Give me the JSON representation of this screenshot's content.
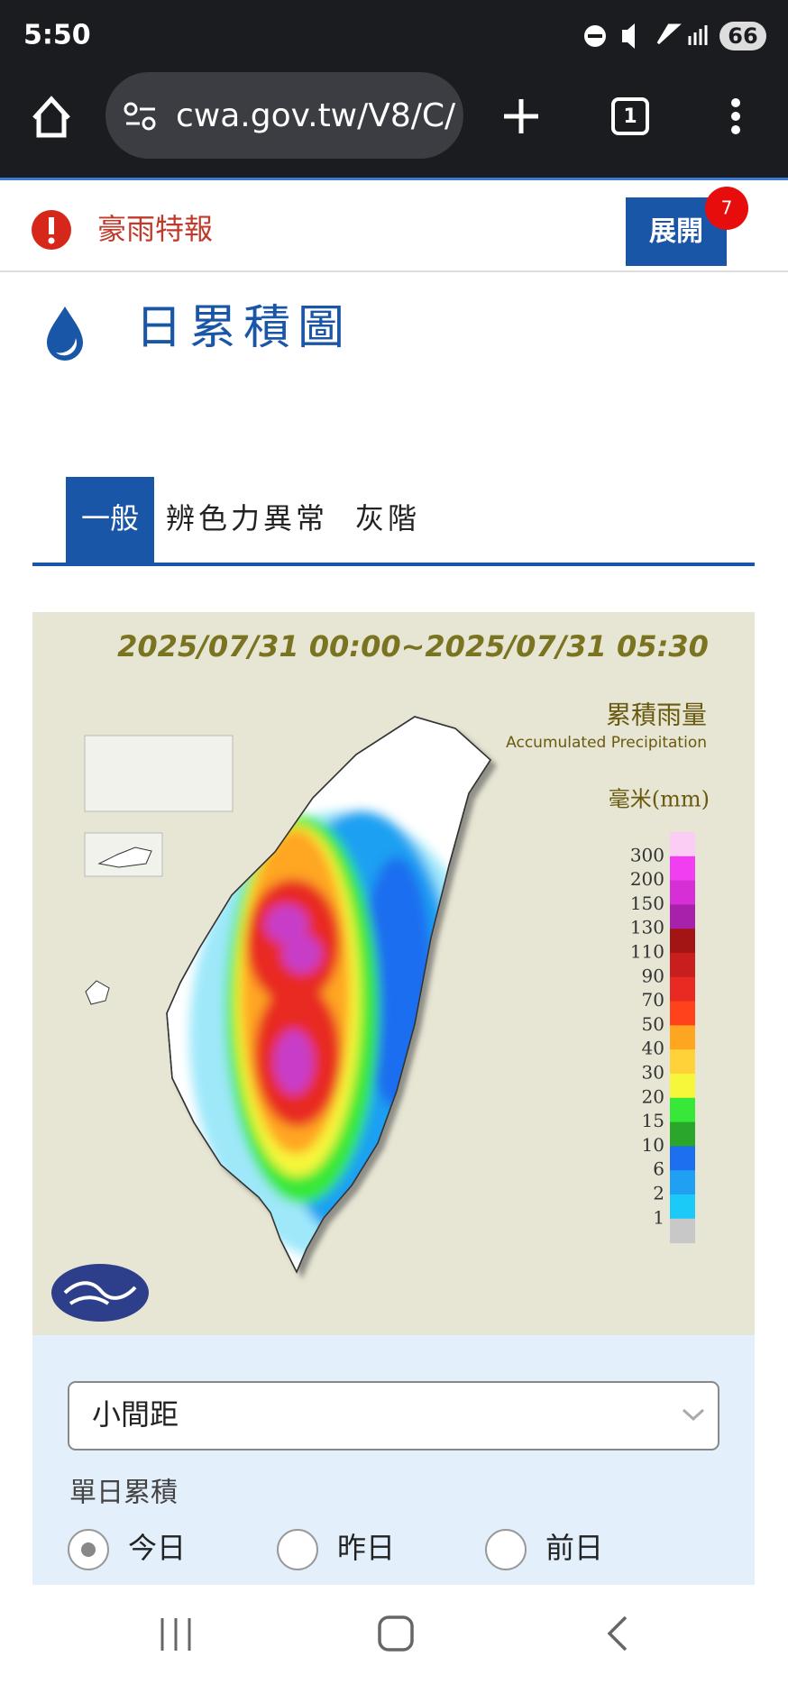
{
  "status_bar": {
    "time": "5:50",
    "battery": "66"
  },
  "browser": {
    "url": "cwa.gov.tw/V8/C/",
    "tab_count": "1"
  },
  "alert": {
    "label": "豪雨特報",
    "button": "展開",
    "badge": "7"
  },
  "page": {
    "title": "日累積圖",
    "tabs": [
      "一般",
      "辨色力異常",
      "灰階"
    ]
  },
  "map": {
    "period": "2025/07/31 00:00~2025/07/31 05:30",
    "legend_title": "累積雨量",
    "legend_subtitle": "Accumulated Precipitation",
    "unit": "毫米(mm)",
    "labels": [
      "300",
      "200",
      "150",
      "130",
      "110",
      "90",
      "70",
      "50",
      "40",
      "30",
      "20",
      "15",
      "10",
      "6",
      "2",
      "1"
    ],
    "colors": [
      "#fbcdf5",
      "#f03ef0",
      "#d62fd6",
      "#a821aa",
      "#a31414",
      "#c81e1e",
      "#e82a22",
      "#ff421c",
      "#ffa620",
      "#ffd23a",
      "#f6f63a",
      "#38e838",
      "#2aa62a",
      "#1e6ef0",
      "#1fa0f2",
      "#1ccaf8",
      "#c8c8c8"
    ]
  },
  "form": {
    "select": "小間距",
    "group_label": "單日累積",
    "options": [
      "今日",
      "昨日",
      "前日"
    ]
  }
}
